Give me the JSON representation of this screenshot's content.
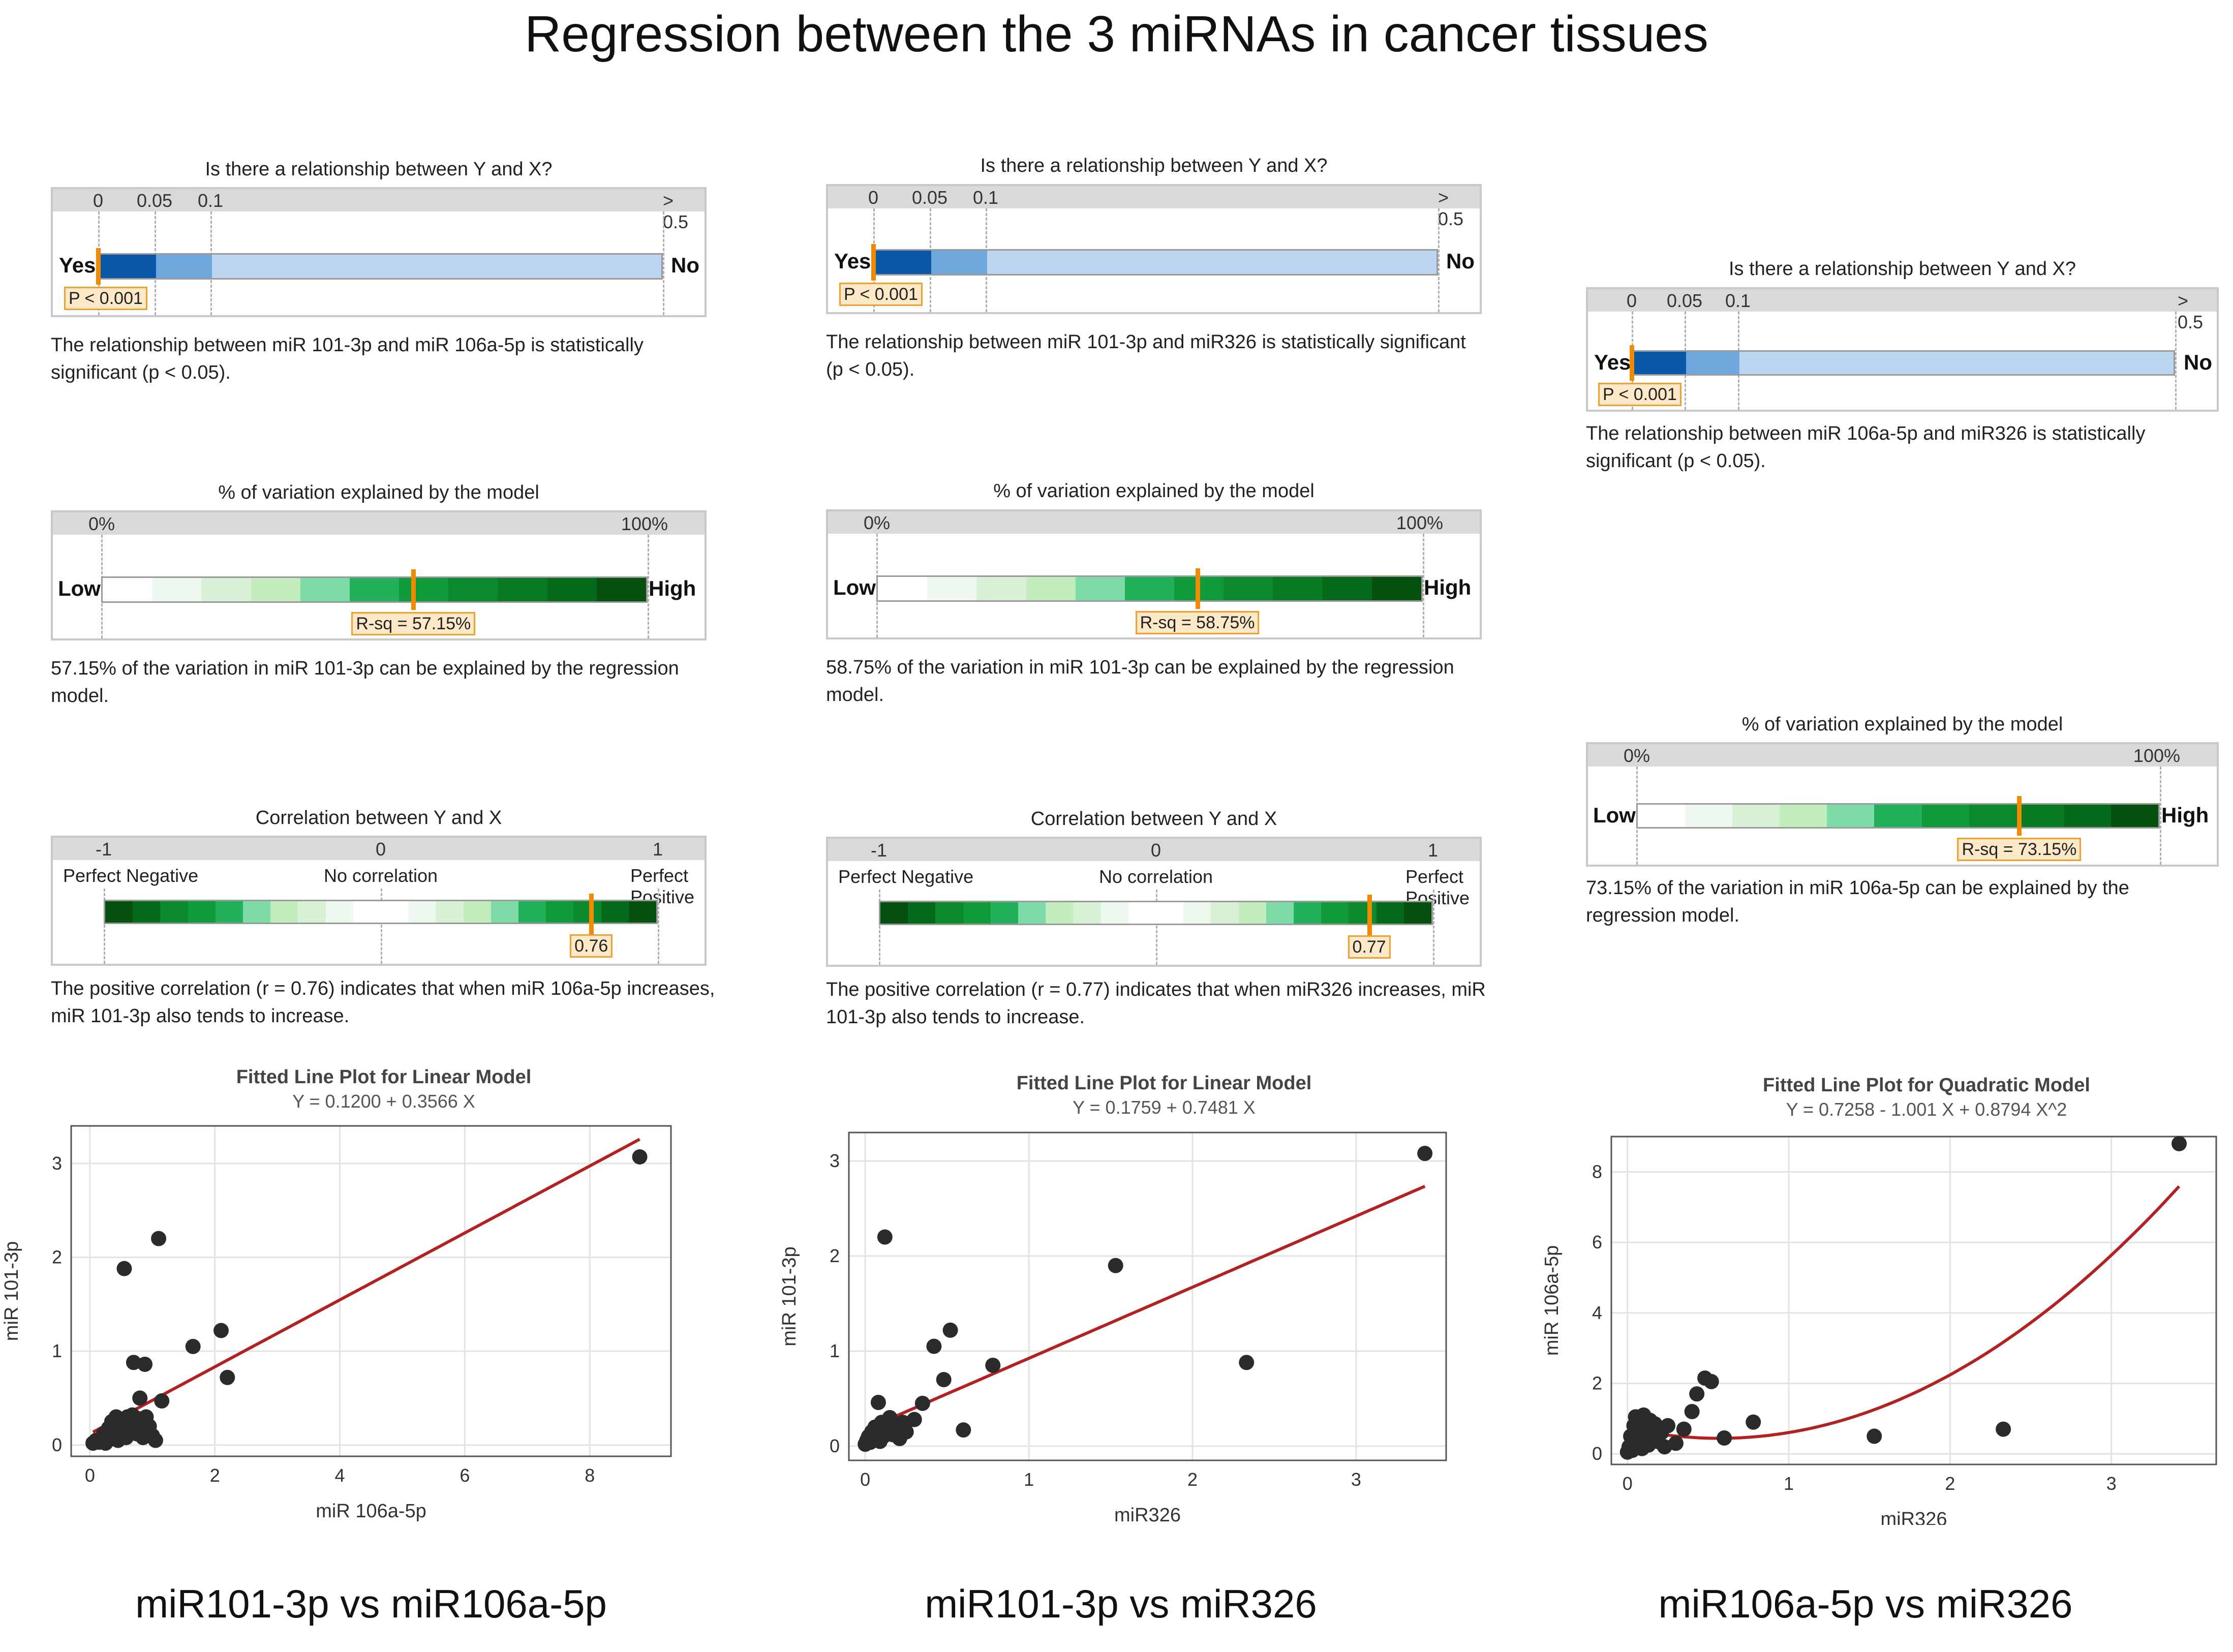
{
  "title": "Regression between the 3 miRNAs in cancer tissues",
  "panels": [
    {
      "caption": "miR101-3p vs miR106a-5p",
      "pvalue": {
        "title": "Is there a relationship between Y and X?",
        "ticks": [
          "0",
          "0.05",
          "0.1",
          "> 0.5"
        ],
        "yes": "Yes",
        "no": "No",
        "tag": "P < 0.001",
        "desc": "The relationship between miR 101-3p and miR 106a-5p is statistically significant (p < 0.05)."
      },
      "rsq": {
        "title": "% of variation explained by the model",
        "ticks": [
          "0%",
          "100%"
        ],
        "low": "Low",
        "high": "High",
        "value": 57.15,
        "tag": "R-sq = 57.15%",
        "desc": "57.15% of the variation in miR 101-3p can be explained by the regression model."
      },
      "corr": {
        "title": "Correlation between Y and X",
        "ticks": [
          "-1",
          "0",
          "1"
        ],
        "labels": [
          "Perfect Negative",
          "No correlation",
          "Perfect Positive"
        ],
        "value": 0.76,
        "tag": "0.76",
        "desc": "The positive correlation (r = 0.76) indicates that when miR 106a-5p increases, miR 101-3p also tends to increase."
      }
    },
    {
      "caption": "miR101-3p vs miR326",
      "pvalue": {
        "title": "Is there a relationship between Y and X?",
        "ticks": [
          "0",
          "0.05",
          "0.1",
          "> 0.5"
        ],
        "yes": "Yes",
        "no": "No",
        "tag": "P < 0.001",
        "desc": "The relationship between miR 101-3p and miR326 is statistically significant (p < 0.05)."
      },
      "rsq": {
        "title": "% of variation explained by the model",
        "ticks": [
          "0%",
          "100%"
        ],
        "low": "Low",
        "high": "High",
        "value": 58.75,
        "tag": "R-sq = 58.75%",
        "desc": "58.75% of the variation in miR 101-3p can be explained by the regression model."
      },
      "corr": {
        "title": "Correlation between Y and X",
        "ticks": [
          "-1",
          "0",
          "1"
        ],
        "labels": [
          "Perfect Negative",
          "No correlation",
          "Perfect Positive"
        ],
        "value": 0.77,
        "tag": "0.77",
        "desc": "The positive correlation (r = 0.77) indicates that when miR326 increases, miR 101-3p also tends to increase."
      }
    },
    {
      "caption": "miR106a-5p vs miR326",
      "pvalue": {
        "title": "Is there a relationship between Y and X?",
        "ticks": [
          "0",
          "0.05",
          "0.1",
          "> 0.5"
        ],
        "yes": "Yes",
        "no": "No",
        "tag": "P < 0.001",
        "desc": "The relationship between miR 106a-5p and miR326 is statistically significant (p < 0.05)."
      },
      "rsq": {
        "title": "% of variation explained by the model",
        "ticks": [
          "0%",
          "100%"
        ],
        "low": "Low",
        "high": "High",
        "value": 73.15,
        "tag": "R-sq = 73.15%",
        "desc": "73.15% of the variation in miR 106a-5p can be explained by the regression model."
      }
    }
  ],
  "colors": {
    "p_dark": "#0b57a8",
    "p_mid": "#6fa8dc",
    "p_light": "#bcd5f0",
    "marker": "#f08a00",
    "fit_line": "#b22222",
    "point": "#2b2b2b"
  },
  "chart_data": [
    {
      "type": "scatter",
      "title": "Fitted Line Plot for Linear Model",
      "subtitle": "Y = 0.1200 + 0.3566 X",
      "xlabel": "miR 106a-5p",
      "ylabel": "miR 101-3p",
      "xlim": [
        -0.3,
        9.3
      ],
      "ylim": [
        -0.12,
        3.4
      ],
      "xticks": [
        0,
        2,
        4,
        6,
        8
      ],
      "yticks": [
        0,
        1,
        2,
        3
      ],
      "fit": {
        "model": "linear",
        "coef": [
          0.12,
          0.3566
        ],
        "xrange": [
          0.05,
          8.8
        ]
      },
      "points": [
        [
          0.05,
          0.02
        ],
        [
          0.1,
          0.05
        ],
        [
          0.15,
          0.03
        ],
        [
          0.2,
          0.08
        ],
        [
          0.22,
          0.12
        ],
        [
          0.25,
          0.02
        ],
        [
          0.3,
          0.18
        ],
        [
          0.32,
          0.06
        ],
        [
          0.35,
          0.25
        ],
        [
          0.38,
          0.1
        ],
        [
          0.4,
          0.15
        ],
        [
          0.42,
          0.3
        ],
        [
          0.45,
          0.05
        ],
        [
          0.48,
          0.22
        ],
        [
          0.5,
          0.12
        ],
        [
          0.52,
          0.2
        ],
        [
          0.55,
          1.88
        ],
        [
          0.58,
          0.08
        ],
        [
          0.6,
          0.3
        ],
        [
          0.62,
          0.15
        ],
        [
          0.65,
          0.25
        ],
        [
          0.68,
          0.32
        ],
        [
          0.7,
          0.88
        ],
        [
          0.72,
          0.18
        ],
        [
          0.75,
          0.12
        ],
        [
          0.78,
          0.28
        ],
        [
          0.8,
          0.5
        ],
        [
          0.82,
          0.22
        ],
        [
          0.85,
          0.08
        ],
        [
          0.88,
          0.86
        ],
        [
          0.9,
          0.3
        ],
        [
          0.92,
          0.15
        ],
        [
          0.95,
          0.2
        ],
        [
          1.0,
          0.1
        ],
        [
          1.05,
          0.05
        ],
        [
          1.1,
          2.2
        ],
        [
          1.15,
          0.47
        ],
        [
          1.65,
          1.05
        ],
        [
          2.1,
          1.22
        ],
        [
          2.2,
          0.72
        ],
        [
          8.8,
          3.07
        ]
      ]
    },
    {
      "type": "scatter",
      "title": "Fitted Line Plot for Linear Model",
      "subtitle": "Y = 0.1759 + 0.7481 X",
      "xlabel": "miR326",
      "ylabel": "miR 101-3p",
      "xlim": [
        -0.1,
        3.55
      ],
      "ylim": [
        -0.15,
        3.3
      ],
      "xticks": [
        0,
        1,
        2,
        3
      ],
      "yticks": [
        0,
        1,
        2,
        3
      ],
      "fit": {
        "model": "linear",
        "coef": [
          0.1759,
          0.7481
        ],
        "xrange": [
          0.02,
          3.42
        ]
      },
      "points": [
        [
          0.0,
          0.02
        ],
        [
          0.01,
          0.06
        ],
        [
          0.02,
          0.1
        ],
        [
          0.03,
          0.04
        ],
        [
          0.04,
          0.15
        ],
        [
          0.05,
          0.08
        ],
        [
          0.06,
          0.2
        ],
        [
          0.07,
          0.12
        ],
        [
          0.08,
          0.46
        ],
        [
          0.09,
          0.05
        ],
        [
          0.1,
          0.25
        ],
        [
          0.11,
          0.1
        ],
        [
          0.12,
          2.2
        ],
        [
          0.13,
          0.18
        ],
        [
          0.15,
          0.3
        ],
        [
          0.17,
          0.12
        ],
        [
          0.19,
          0.2
        ],
        [
          0.21,
          0.08
        ],
        [
          0.23,
          0.25
        ],
        [
          0.25,
          0.15
        ],
        [
          0.3,
          0.28
        ],
        [
          0.35,
          0.45
        ],
        [
          0.42,
          1.05
        ],
        [
          0.48,
          0.7
        ],
        [
          0.52,
          1.22
        ],
        [
          0.6,
          0.17
        ],
        [
          0.78,
          0.85
        ],
        [
          1.53,
          1.9
        ],
        [
          2.33,
          0.88
        ],
        [
          3.42,
          3.08
        ]
      ]
    },
    {
      "type": "scatter",
      "title": "Fitted Line Plot for Quadratic Model",
      "subtitle": "Y = 0.7258 - 1.001 X + 0.8794 X^2",
      "xlabel": "miR326",
      "ylabel": "miR 106a-5p",
      "xlim": [
        -0.1,
        3.65
      ],
      "ylim": [
        -0.3,
        9.0
      ],
      "xticks": [
        0,
        1,
        2,
        3
      ],
      "yticks": [
        0,
        2,
        4,
        6,
        8
      ],
      "fit": {
        "model": "quadratic",
        "coef": [
          0.7258,
          -1.001,
          0.8794
        ],
        "xrange": [
          0.02,
          3.42
        ]
      },
      "points": [
        [
          0.0,
          0.05
        ],
        [
          0.01,
          0.2
        ],
        [
          0.02,
          0.5
        ],
        [
          0.03,
          0.1
        ],
        [
          0.04,
          0.8
        ],
        [
          0.05,
          1.05
        ],
        [
          0.06,
          0.3
        ],
        [
          0.07,
          0.6
        ],
        [
          0.08,
          0.9
        ],
        [
          0.09,
          0.15
        ],
        [
          0.1,
          1.1
        ],
        [
          0.11,
          0.4
        ],
        [
          0.12,
          0.7
        ],
        [
          0.13,
          0.25
        ],
        [
          0.14,
          0.95
        ],
        [
          0.15,
          0.5
        ],
        [
          0.17,
          0.85
        ],
        [
          0.19,
          0.35
        ],
        [
          0.21,
          0.6
        ],
        [
          0.23,
          0.2
        ],
        [
          0.25,
          0.8
        ],
        [
          0.3,
          0.3
        ],
        [
          0.35,
          0.7
        ],
        [
          0.4,
          1.2
        ],
        [
          0.43,
          1.7
        ],
        [
          0.48,
          2.15
        ],
        [
          0.52,
          2.05
        ],
        [
          0.6,
          0.45
        ],
        [
          0.78,
          0.9
        ],
        [
          1.53,
          0.5
        ],
        [
          2.33,
          0.7
        ],
        [
          3.42,
          8.8
        ]
      ]
    }
  ]
}
